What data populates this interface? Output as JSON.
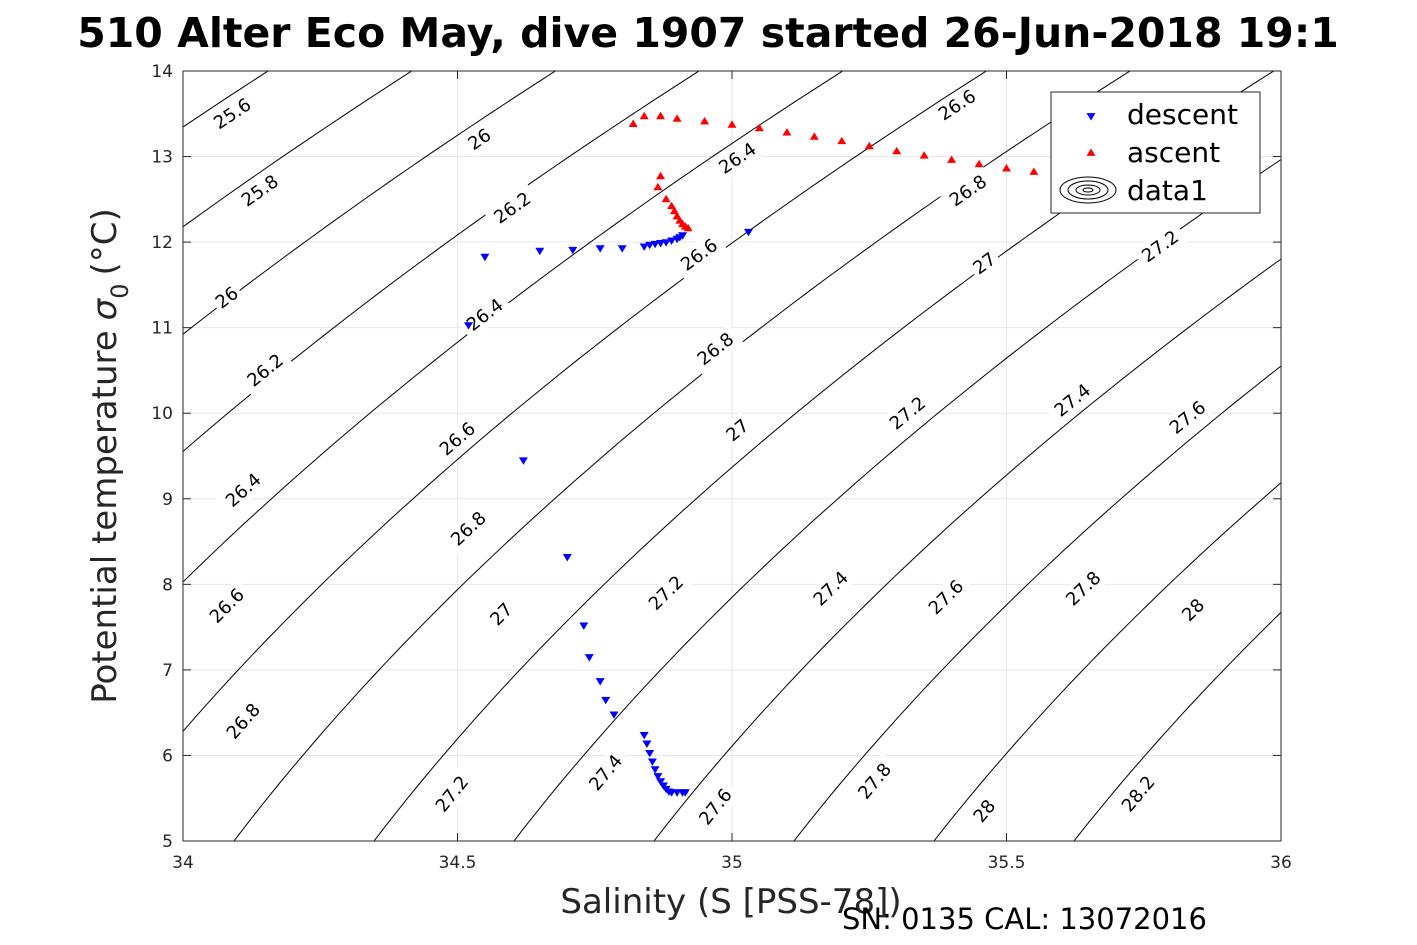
{
  "chart_data": {
    "type": "scatter",
    "title": "510 Alter Eco May, dive 1907 started 26-Jun-2018 19:1",
    "xlabel": "Salinity (S [PSS-78])",
    "ylabel": "Potential temperature",
    "ylabel_sigma": "σ",
    "ylabel_sub": "0",
    "ylabel_unit": "(°C)",
    "footer": "SN: 0135  CAL: 13072016",
    "xlim": [
      34,
      36
    ],
    "ylim": [
      5,
      14
    ],
    "xticks": [
      34,
      34.5,
      35,
      35.5,
      36
    ],
    "xtick_labels": [
      "34",
      "34.5",
      "35",
      "35.5",
      "36"
    ],
    "yticks": [
      5,
      6,
      7,
      8,
      9,
      10,
      11,
      12,
      13,
      14
    ],
    "ytick_labels": [
      "5",
      "6",
      "7",
      "8",
      "9",
      "10",
      "11",
      "12",
      "13",
      "14"
    ],
    "grid": true,
    "legend_position": "top-right",
    "series": [
      {
        "name": "descent",
        "marker": "triangle-down",
        "color": "#0000ff",
        "points": [
          [
            34.55,
            11.83
          ],
          [
            34.65,
            11.9
          ],
          [
            34.71,
            11.91
          ],
          [
            34.76,
            11.93
          ],
          [
            34.8,
            11.93
          ],
          [
            34.84,
            11.95
          ],
          [
            34.85,
            11.97
          ],
          [
            34.86,
            11.98
          ],
          [
            34.87,
            11.99
          ],
          [
            34.88,
            12.0
          ],
          [
            34.89,
            12.02
          ],
          [
            34.9,
            12.04
          ],
          [
            34.905,
            12.06
          ],
          [
            34.91,
            12.08
          ],
          [
            35.03,
            12.12
          ],
          [
            34.52,
            11.03
          ],
          [
            34.62,
            9.45
          ],
          [
            34.7,
            8.32
          ],
          [
            34.73,
            7.52
          ],
          [
            34.74,
            7.15
          ],
          [
            34.76,
            6.87
          ],
          [
            34.77,
            6.65
          ],
          [
            34.785,
            6.48
          ],
          [
            34.84,
            6.24
          ],
          [
            34.845,
            6.14
          ],
          [
            34.85,
            6.03
          ],
          [
            34.855,
            5.93
          ],
          [
            34.86,
            5.84
          ],
          [
            34.865,
            5.76
          ],
          [
            34.87,
            5.7
          ],
          [
            34.875,
            5.65
          ],
          [
            34.88,
            5.61
          ],
          [
            34.885,
            5.58
          ],
          [
            34.89,
            5.57
          ],
          [
            34.9,
            5.57
          ],
          [
            34.91,
            5.57
          ],
          [
            34.915,
            5.57
          ]
        ]
      },
      {
        "name": "ascent",
        "marker": "triangle-up",
        "color": "#ff0000",
        "points": [
          [
            34.82,
            13.38
          ],
          [
            34.84,
            13.47
          ],
          [
            34.87,
            13.47
          ],
          [
            34.9,
            13.44
          ],
          [
            34.95,
            13.41
          ],
          [
            35.0,
            13.37
          ],
          [
            35.05,
            13.33
          ],
          [
            35.1,
            13.28
          ],
          [
            35.15,
            13.23
          ],
          [
            35.2,
            13.18
          ],
          [
            35.25,
            13.12
          ],
          [
            35.3,
            13.06
          ],
          [
            35.35,
            13.01
          ],
          [
            35.4,
            12.96
          ],
          [
            35.45,
            12.91
          ],
          [
            35.5,
            12.86
          ],
          [
            35.55,
            12.82
          ],
          [
            35.6,
            12.78
          ],
          [
            35.65,
            12.74
          ],
          [
            35.69,
            12.7
          ],
          [
            34.87,
            12.77
          ],
          [
            34.865,
            12.64
          ],
          [
            34.88,
            12.5
          ],
          [
            34.89,
            12.42
          ],
          [
            34.895,
            12.36
          ],
          [
            34.9,
            12.3
          ],
          [
            34.905,
            12.25
          ],
          [
            34.91,
            12.21
          ],
          [
            34.915,
            12.18
          ],
          [
            34.92,
            12.16
          ]
        ]
      }
    ],
    "contour_legend_name": "data1",
    "contours": {
      "levels": [
        25.6,
        25.8,
        26,
        26.2,
        26.4,
        26.6,
        26.8,
        27,
        27.2,
        27.4,
        27.6,
        27.8,
        28,
        28.2
      ],
      "labels": [
        {
          "text": "25.6",
          "s": 34.09,
          "t": 13.5
        },
        {
          "text": "25.8",
          "s": 34.14,
          "t": 12.6
        },
        {
          "text": "26",
          "s": 34.54,
          "t": 13.2
        },
        {
          "text": "26",
          "s": 34.08,
          "t": 11.35
        },
        {
          "text": "26.2",
          "s": 34.6,
          "t": 12.4
        },
        {
          "text": "26.2",
          "s": 34.15,
          "t": 10.5
        },
        {
          "text": "26.4",
          "s": 34.55,
          "t": 11.15
        },
        {
          "text": "26.4",
          "s": 35.01,
          "t": 12.98
        },
        {
          "text": "26.4",
          "s": 34.11,
          "t": 9.1
        },
        {
          "text": "26.6",
          "s": 34.5,
          "t": 9.7
        },
        {
          "text": "26.6",
          "s": 35.41,
          "t": 13.6
        },
        {
          "text": "26.6",
          "s": 34.94,
          "t": 11.85
        },
        {
          "text": "26.6",
          "s": 34.08,
          "t": 7.75
        },
        {
          "text": "26.8",
          "s": 34.52,
          "t": 8.65
        },
        {
          "text": "26.8",
          "s": 34.97,
          "t": 10.75
        },
        {
          "text": "26.8",
          "s": 35.43,
          "t": 12.6
        },
        {
          "text": "26.8",
          "s": 34.11,
          "t": 6.4
        },
        {
          "text": "27",
          "s": 34.58,
          "t": 7.65
        },
        {
          "text": "27",
          "s": 35.01,
          "t": 9.8
        },
        {
          "text": "27",
          "s": 35.46,
          "t": 11.75
        },
        {
          "text": "27.2",
          "s": 34.49,
          "t": 5.55
        },
        {
          "text": "27.2",
          "s": 34.88,
          "t": 7.9
        },
        {
          "text": "27.2",
          "s": 35.32,
          "t": 10.0
        },
        {
          "text": "27.2",
          "s": 35.78,
          "t": 11.95
        },
        {
          "text": "27.4",
          "s": 34.77,
          "t": 5.8
        },
        {
          "text": "27.4",
          "s": 35.18,
          "t": 7.95
        },
        {
          "text": "27.4",
          "s": 35.62,
          "t": 10.15
        },
        {
          "text": "27.6",
          "s": 34.97,
          "t": 5.4
        },
        {
          "text": "27.6",
          "s": 35.39,
          "t": 7.85
        },
        {
          "text": "27.6",
          "s": 35.83,
          "t": 9.95
        },
        {
          "text": "27.8",
          "s": 35.26,
          "t": 5.7
        },
        {
          "text": "27.8",
          "s": 35.64,
          "t": 7.95
        },
        {
          "text": "28",
          "s": 35.46,
          "t": 5.35
        },
        {
          "text": "28",
          "s": 35.84,
          "t": 7.7
        },
        {
          "text": "28.2",
          "s": 35.74,
          "t": 5.55
        }
      ]
    }
  },
  "colors": {
    "descent": "#0000ff",
    "ascent": "#ff0000",
    "grid": "#e6e6e6",
    "contour": "#000000"
  }
}
